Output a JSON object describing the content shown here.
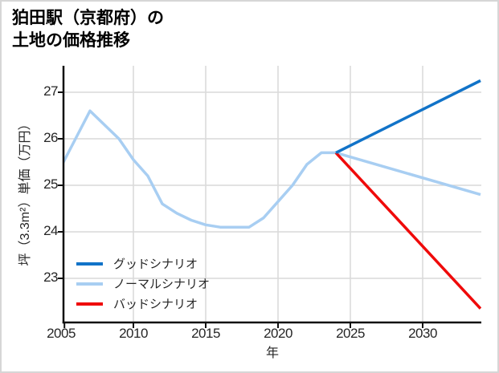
{
  "title": {
    "line1": "狛田駅（京都府）の",
    "line2": "土地の価格推移"
  },
  "chart_data": {
    "type": "line",
    "title": "狛田駅（京都府）の土地の価格推移",
    "xlabel": "年",
    "ylabel": "坪（3.3m²）単価（万円）",
    "x_ticks": [
      "2005",
      "2010",
      "2015",
      "2020",
      "2025",
      "2030"
    ],
    "x_tick_years": [
      2005,
      2010,
      2015,
      2020,
      2025,
      2030
    ],
    "y_ticks": [
      "23",
      "24",
      "25",
      "26",
      "27"
    ],
    "y_tick_values": [
      23,
      24,
      25,
      26,
      27
    ],
    "xlim": [
      2005,
      2034
    ],
    "ylim": [
      22.0,
      27.6
    ],
    "grid": true,
    "legend_position": "lower left inside",
    "series": [
      {
        "name": "グッドシナリオ",
        "color": "#1173c8",
        "x": [
          2024,
          2034
        ],
        "y": [
          25.7,
          27.25
        ]
      },
      {
        "name": "ノーマルシナリオ",
        "color": "#a8cef2",
        "x": [
          2005,
          2006,
          2007,
          2008,
          2009,
          2010,
          2011,
          2012,
          2013,
          2014,
          2015,
          2016,
          2017,
          2018,
          2019,
          2020,
          2021,
          2022,
          2023,
          2024,
          2034
        ],
        "y": [
          25.4,
          26.0,
          26.6,
          26.3,
          26.0,
          25.55,
          25.2,
          24.6,
          24.4,
          24.25,
          24.15,
          24.1,
          24.1,
          24.1,
          24.3,
          24.65,
          25.0,
          25.45,
          25.7,
          25.7,
          24.8
        ]
      },
      {
        "name": "バッドシナリオ",
        "color": "#ef0a0a",
        "x": [
          2024,
          2034
        ],
        "y": [
          25.7,
          22.35
        ]
      }
    ],
    "colors": {
      "grid": "#d9d9d9",
      "spine": "#111111",
      "tick_label": "#262626",
      "title": "#000000"
    }
  }
}
